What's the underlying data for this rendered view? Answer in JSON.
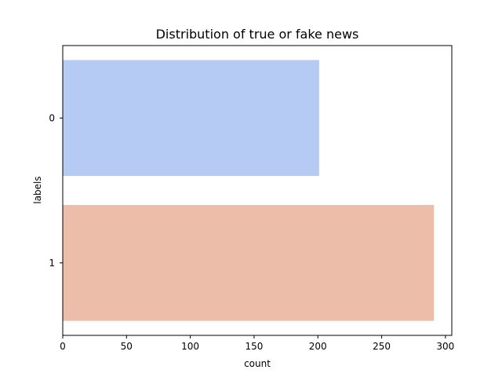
{
  "chart_data": {
    "type": "bar",
    "orientation": "horizontal",
    "title": "Distribution of true or fake news",
    "xlabel": "count",
    "ylabel": "labels",
    "categories": [
      "0",
      "1"
    ],
    "values": [
      201,
      291
    ],
    "colors": [
      "#b5cbf4",
      "#ecbea9"
    ],
    "xlim": [
      0,
      305
    ],
    "xticks": [
      0,
      50,
      100,
      150,
      200,
      250,
      300
    ],
    "grid": false,
    "legend": "none"
  }
}
